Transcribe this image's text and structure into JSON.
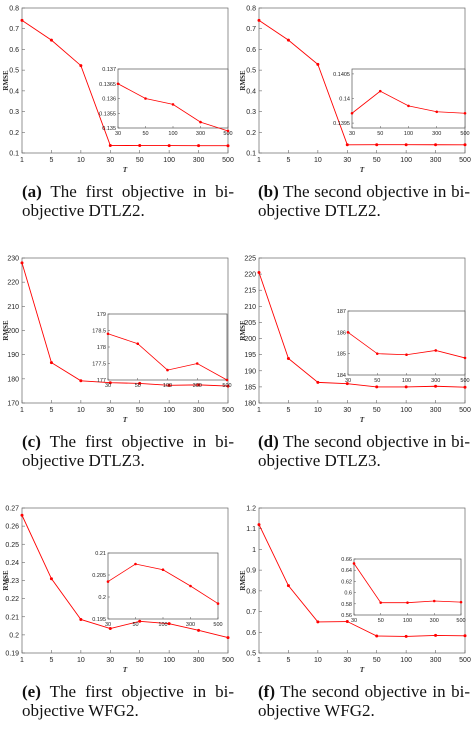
{
  "x_ticks": [
    "1",
    "5",
    "10",
    "30",
    "50",
    "100",
    "300",
    "500"
  ],
  "inset_x_ticks": [
    "30",
    "50",
    "100",
    "300",
    "500"
  ],
  "x_axis_label": "T",
  "y_axis_label": "RMSE",
  "captions": [
    {
      "label": "(a)",
      "text": "The first objective in bi-objective DTLZ2."
    },
    {
      "label": "(b)",
      "text": "The second objective in bi-objective DTLZ2."
    },
    {
      "label": "(c)",
      "text": "The first objective in bi-objective DTLZ3."
    },
    {
      "label": "(d)",
      "text": "The second objective in bi-objective DTLZ3."
    },
    {
      "label": "(e)",
      "text": "The first objective in bi-objective WFG2."
    },
    {
      "label": "(f)",
      "text": "The second objective in bi-objective WFG2."
    }
  ],
  "chart_data": [
    {
      "type": "line",
      "color": "#ff0000",
      "categories": [
        "1",
        "5",
        "10",
        "30",
        "50",
        "100",
        "300",
        "500"
      ],
      "values": [
        0.74,
        0.645,
        0.522,
        0.1365,
        0.136,
        0.1358,
        0.1354,
        0.1351
      ],
      "xlabel": "T",
      "ylabel": "RMSE",
      "ylim": [
        0.1,
        0.8
      ],
      "yticks": [
        "0.1",
        "0.2",
        "0.3",
        "0.4",
        "0.5",
        "0.6",
        "0.7",
        "0.8"
      ],
      "inset": {
        "categories": [
          "30",
          "50",
          "100",
          "300",
          "500"
        ],
        "values": [
          0.1365,
          0.136,
          0.1358,
          0.1352,
          0.1349
        ],
        "ylim": [
          0.135,
          0.137
        ],
        "yticks": [
          "0.135",
          "0.1355",
          "0.136",
          "0.1365",
          "0.137"
        ]
      }
    },
    {
      "type": "line",
      "color": "#ff0000",
      "categories": [
        "1",
        "5",
        "10",
        "30",
        "50",
        "100",
        "300",
        "500"
      ],
      "values": [
        0.74,
        0.645,
        0.528,
        0.1397,
        0.1401,
        0.1399,
        0.1398,
        0.1397
      ],
      "xlabel": "T",
      "ylabel": "RMSE",
      "ylim": [
        0.1,
        0.8
      ],
      "yticks": [
        "0.1",
        "0.2",
        "0.3",
        "0.4",
        "0.5",
        "0.6",
        "0.7",
        "0.8"
      ],
      "inset": {
        "categories": [
          "30",
          "50",
          "100",
          "300",
          "500"
        ],
        "values": [
          0.1397,
          0.14015,
          0.13985,
          0.13973,
          0.1397
        ],
        "ylim": [
          0.1394,
          0.1406
        ],
        "yticks": [
          "0.1395",
          "0.14",
          "0.1405"
        ]
      }
    },
    {
      "type": "line",
      "color": "#ff0000",
      "categories": [
        "1",
        "5",
        "10",
        "30",
        "50",
        "100",
        "300",
        "500"
      ],
      "values": [
        228,
        186.7,
        179.2,
        178.4,
        178.1,
        177.3,
        177.5,
        177.0
      ],
      "xlabel": "T",
      "ylabel": "RMSE",
      "ylim": [
        170,
        230
      ],
      "yticks": [
        "170",
        "180",
        "190",
        "200",
        "210",
        "220",
        "230"
      ],
      "inset": {
        "categories": [
          "30",
          "50",
          "100",
          "300",
          "500"
        ],
        "values": [
          178.4,
          178.1,
          177.3,
          177.5,
          177.0
        ],
        "ylim": [
          177,
          179
        ],
        "yticks": [
          "177",
          "177.5",
          "178",
          "178.5",
          "179"
        ]
      }
    },
    {
      "type": "line",
      "color": "#ff0000",
      "categories": [
        "1",
        "5",
        "10",
        "30",
        "50",
        "100",
        "300",
        "500"
      ],
      "values": [
        220.5,
        193.8,
        186.4,
        186.0,
        185.0,
        185.0,
        185.2,
        184.9
      ],
      "xlabel": "T",
      "ylabel": "RMSE",
      "ylim": [
        180,
        225
      ],
      "yticks": [
        "180",
        "185",
        "190",
        "195",
        "200",
        "205",
        "210",
        "215",
        "220",
        "225"
      ],
      "inset": {
        "categories": [
          "30",
          "50",
          "100",
          "300",
          "500"
        ],
        "values": [
          186.0,
          185.0,
          184.95,
          185.15,
          184.8
        ],
        "ylim": [
          184,
          187
        ],
        "yticks": [
          "184",
          "185",
          "186",
          "187"
        ]
      }
    },
    {
      "type": "line",
      "color": "#ff0000",
      "categories": [
        "1",
        "5",
        "10",
        "30",
        "50",
        "100",
        "300",
        "500"
      ],
      "values": [
        0.266,
        0.231,
        0.2085,
        0.2035,
        0.2075,
        0.2062,
        0.2025,
        0.1985
      ],
      "xlabel": "T",
      "ylabel": "RMSE",
      "ylim": [
        0.19,
        0.27
      ],
      "yticks": [
        "0.19",
        "0.2",
        "0.21",
        "0.22",
        "0.23",
        "0.24",
        "0.25",
        "0.26",
        "0.27"
      ],
      "inset": {
        "categories": [
          "30",
          "50",
          "100",
          "300",
          "500"
        ],
        "values": [
          0.2035,
          0.2075,
          0.2062,
          0.2025,
          0.1985
        ],
        "ylim": [
          0.195,
          0.21
        ],
        "yticks": [
          "0.195",
          "0.2",
          "0.205",
          "0.21"
        ]
      }
    },
    {
      "type": "line",
      "color": "#ff0000",
      "categories": [
        "1",
        "5",
        "10",
        "30",
        "50",
        "100",
        "300",
        "500"
      ],
      "values": [
        1.12,
        0.825,
        0.65,
        0.652,
        0.582,
        0.58,
        0.585,
        0.583
      ],
      "xlabel": "T",
      "ylabel": "RMSE",
      "ylim": [
        0.5,
        1.2
      ],
      "yticks": [
        "0.5",
        "0.6",
        "0.7",
        "0.8",
        "0.9",
        "1",
        "1.1",
        "1.2"
      ],
      "inset": {
        "categories": [
          "30",
          "50",
          "100",
          "300",
          "500"
        ],
        "values": [
          0.652,
          0.582,
          0.582,
          0.585,
          0.583
        ],
        "ylim": [
          0.56,
          0.66
        ],
        "yticks": [
          "0.56",
          "0.58",
          "0.6",
          "0.62",
          "0.64",
          "0.66"
        ]
      }
    }
  ]
}
